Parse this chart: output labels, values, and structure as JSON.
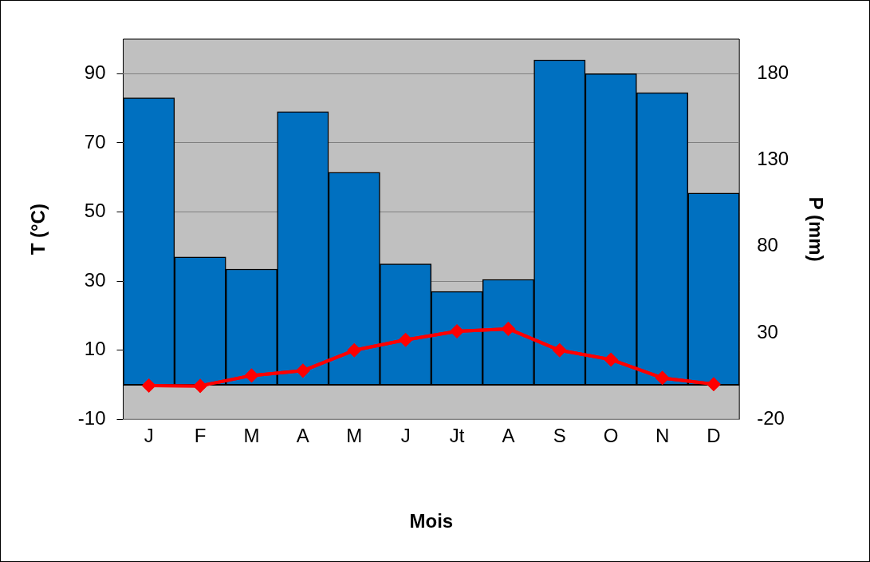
{
  "chart_data": {
    "type": "bar",
    "xlabel": "Mois",
    "ylabel": "T (°C)",
    "y2label": "P (mm)",
    "categories": [
      "J",
      "F",
      "M",
      "A",
      "M",
      "J",
      "Jt",
      "A",
      "S",
      "O",
      "N",
      "D"
    ],
    "series": [
      {
        "axis": "y2",
        "color": "#0070c0",
        "values": [
          166,
          74,
          67,
          158,
          123,
          70,
          54,
          61,
          188,
          180,
          169,
          111
        ]
      },
      {
        "type": "line",
        "axis": "y",
        "color": "#ff0000",
        "marker": "diamond",
        "values": [
          -0.2,
          -0.3,
          2.7,
          4.1,
          10,
          13,
          15.5,
          16.2,
          10,
          7.3,
          2,
          0.2
        ]
      }
    ],
    "ylim": [
      -10,
      100
    ],
    "yticks": [
      -10,
      10,
      30,
      50,
      70,
      90
    ],
    "y2lim": [
      -20,
      200
    ],
    "y2ticks": [
      -20,
      30,
      80,
      130,
      180
    ],
    "grid": "y",
    "legend": false,
    "ref_lines": [
      {
        "axis": "y",
        "value": 0,
        "color": "#000000"
      }
    ]
  }
}
